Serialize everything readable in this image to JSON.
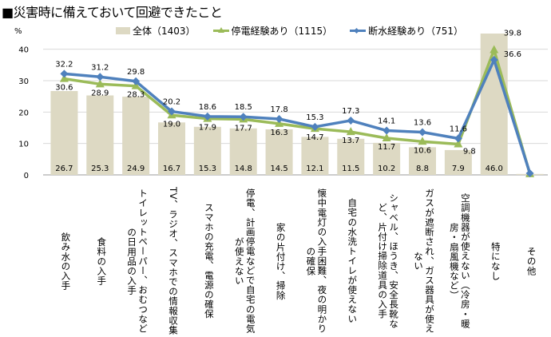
{
  "title": "■災害時に備えておいて回避できたこと",
  "colors": {
    "bar": "#ddd9c3",
    "green": "#9bbb59",
    "blue": "#4f81bd",
    "grid": "#d9d9d9"
  },
  "chart_data": {
    "type": "bar+line",
    "title": "■災害時に備えておいて回避できたこと",
    "ylabel": "%",
    "ylim": [
      0,
      45
    ],
    "yticks": [
      0,
      10,
      20,
      30,
      40
    ],
    "grid": true,
    "legend_position": "top",
    "categories": [
      "飲み水の入手",
      "食料の入手",
      "トイレットペーパー、おむつなどの日用品の入手",
      "TV、ラジオ、スマホでの情報収集",
      "スマホの充電、電源の確保",
      "停電、計画停電などで自宅の電気が使えない",
      "家の片付け、掃除",
      "懐中電灯の入手困難、夜の明かりの確保",
      "自宅の水洗トイレが使えない",
      "シャベル、ほうき、安全長靴など、片付け掃除道具の入手",
      "ガスが遮断され、ガス器具が使えない",
      "空調機器が使えない（冷房・暖房・扇風機など）",
      "特になし",
      "その他"
    ],
    "series": [
      {
        "name": "全体（1403）",
        "type": "bar",
        "values": [
          26.7,
          25.3,
          24.9,
          16.7,
          15.3,
          14.8,
          14.5,
          12.1,
          11.5,
          10.2,
          8.8,
          7.9,
          46.0,
          0.3
        ],
        "labels": [
          "26.7",
          "25.3",
          "24.9",
          "16.7",
          "15.3",
          "14.8",
          "14.5",
          "12.1",
          "11.5",
          "10.2",
          "8.8",
          "7.9",
          "46.0",
          ""
        ]
      },
      {
        "name": "停電経験あり（1115）",
        "type": "line",
        "marker": "triangle",
        "values": [
          30.6,
          28.9,
          28.3,
          19.0,
          17.9,
          17.7,
          16.3,
          14.7,
          13.7,
          11.7,
          10.6,
          9.8,
          39.8,
          0.3
        ],
        "labels": [
          "30.6",
          "28.9",
          "28.3",
          "19.0",
          "17.9",
          "17.7",
          "16.3",
          "14.7",
          "13.7",
          "11.7",
          "10.6",
          "9.8",
          "39.8",
          ""
        ]
      },
      {
        "name": "断水経験あり（751）",
        "type": "line",
        "marker": "diamond",
        "values": [
          32.2,
          31.2,
          29.8,
          20.2,
          18.6,
          18.5,
          17.8,
          15.3,
          17.3,
          14.1,
          13.6,
          11.6,
          36.6,
          0.5
        ],
        "labels": [
          "32.2",
          "31.2",
          "29.8",
          "20.2",
          "18.6",
          "18.5",
          "17.8",
          "15.3",
          "17.3",
          "14.1",
          "13.6",
          "11.6",
          "36.6",
          ""
        ]
      }
    ]
  }
}
